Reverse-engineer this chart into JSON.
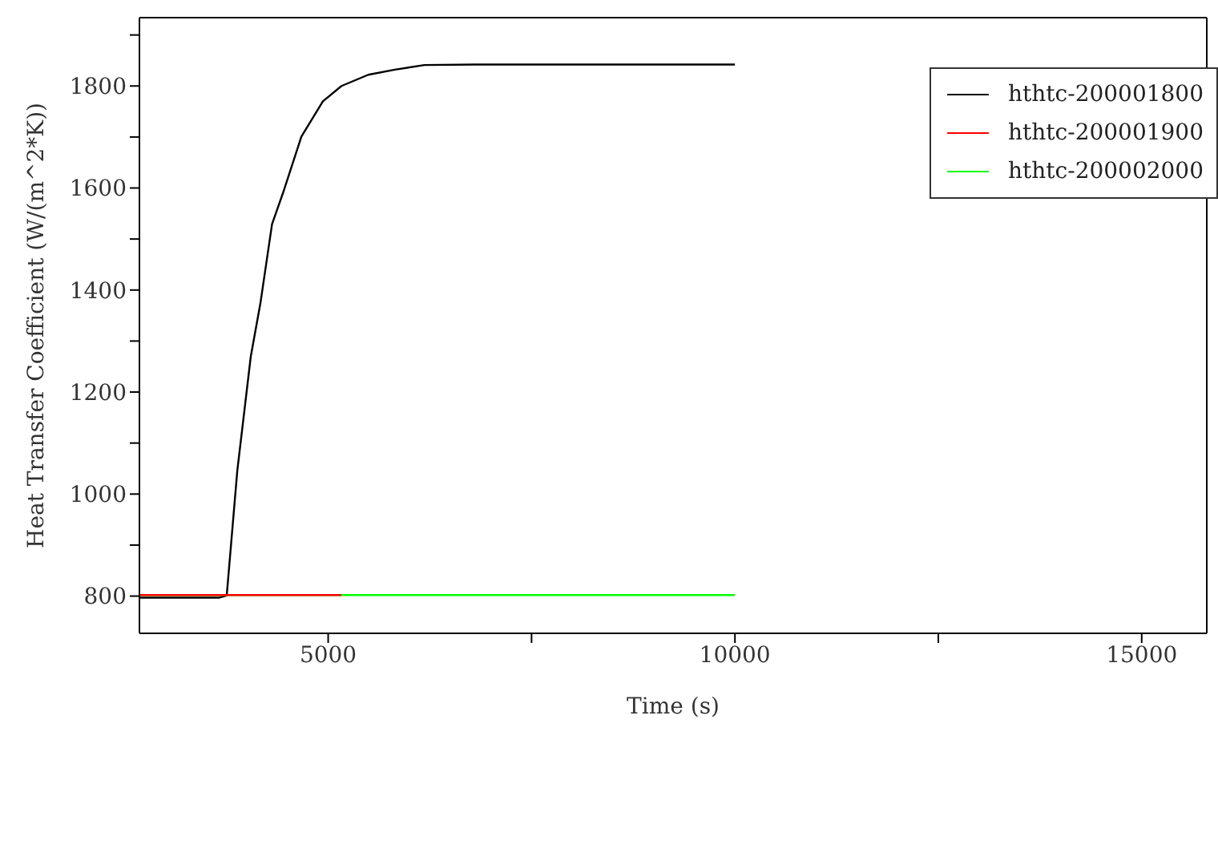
{
  "chart_data": {
    "type": "line",
    "xlabel": "Time (s)",
    "ylabel": "Heat Transfer Coefficient (W/(m^2*K))",
    "xlim": [
      2680,
      15800
    ],
    "ylim": [
      727,
      1934
    ],
    "xticks": [
      5000,
      {
        "value": 7500,
        "label": null
      },
      10000,
      {
        "value": 12500,
        "label": null
      },
      15000
    ],
    "yticks": [
      800,
      {
        "value": 900,
        "label": null
      },
      1000,
      {
        "value": 1100,
        "label": null
      },
      1200,
      {
        "value": 1300,
        "label": null
      },
      1400,
      {
        "value": 1500,
        "label": null
      },
      1600,
      {
        "value": 1700,
        "label": null
      },
      1800,
      {
        "value": 1900,
        "label": null
      }
    ],
    "legend": "top right",
    "marker": "none",
    "line_style": "solid",
    "series": [
      {
        "name": "hthtc-200001800",
        "color": "#000000",
        "x": [
          2680,
          3666,
          3753,
          3883,
          4049,
          4167,
          4310,
          4442,
          4671,
          4935,
          5164,
          5493,
          5821,
          6182,
          6800,
          10000
        ],
        "values": [
          797,
          797,
          801,
          1046,
          1270,
          1374,
          1529,
          1589,
          1701,
          1770,
          1800,
          1822,
          1832,
          1841,
          1842,
          1842
        ]
      },
      {
        "name": "hthtc-200001900",
        "color": "#ff0000",
        "x": [
          2680,
          5160
        ],
        "values": [
          802,
          802
        ]
      },
      {
        "name": "hthtc-200002000",
        "color": "#00ff00",
        "x": [
          2680,
          10000
        ],
        "values": [
          802,
          802
        ]
      }
    ]
  }
}
